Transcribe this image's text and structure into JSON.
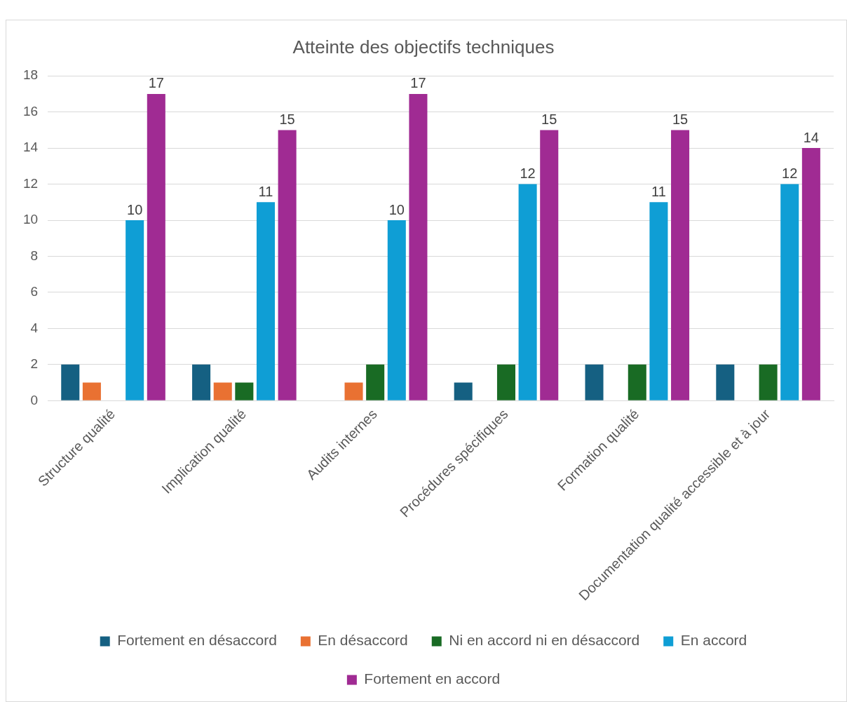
{
  "chart_data": {
    "type": "bar",
    "title": "Atteinte des objectifs techniques",
    "categories": [
      "Structure qualité",
      "Implication qualité",
      "Audits internes",
      "Procédures spécifiques",
      "Formation qualité",
      "Documentation qualité accessible et à jour"
    ],
    "series": [
      {
        "name": "Fortement en désaccord",
        "color": "#156082",
        "values": [
          2,
          2,
          0,
          1,
          2,
          2
        ]
      },
      {
        "name": "En désaccord",
        "color": "#e97132",
        "values": [
          1,
          1,
          1,
          0,
          0,
          0
        ]
      },
      {
        "name": "Ni en accord ni en désaccord",
        "color": "#196b24",
        "values": [
          0,
          1,
          2,
          2,
          2,
          2
        ]
      },
      {
        "name": "En accord",
        "color": "#0f9ed5",
        "values": [
          10,
          11,
          10,
          12,
          11,
          12
        ],
        "value_labels": [
          "10",
          "11",
          "10",
          "12",
          "11",
          "12"
        ]
      },
      {
        "name": "Fortement en accord",
        "color": "#a02b93",
        "values": [
          17,
          15,
          17,
          15,
          15,
          14
        ],
        "value_labels": [
          "17",
          "15",
          "17",
          "15",
          "15",
          "14"
        ]
      }
    ],
    "ylim": [
      0,
      18
    ],
    "yticks": [
      0,
      2,
      4,
      6,
      8,
      10,
      12,
      14,
      16,
      18
    ],
    "grid": "y",
    "legend": "bottom"
  }
}
